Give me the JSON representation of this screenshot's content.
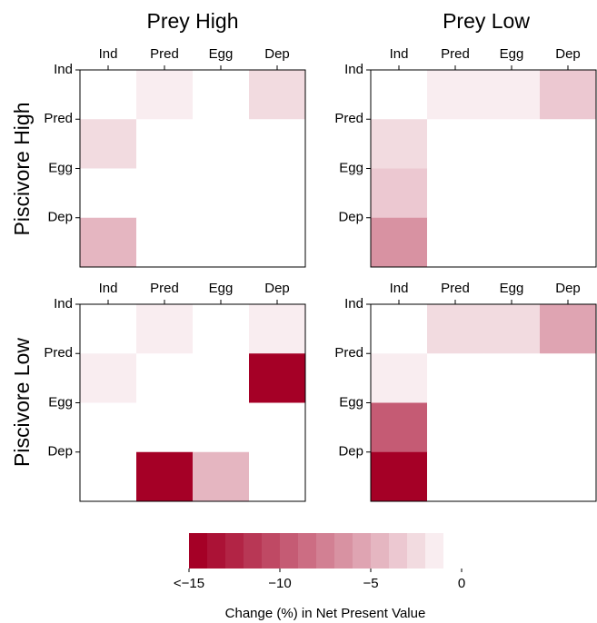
{
  "column_titles": [
    "Prey High",
    "Prey Low"
  ],
  "row_titles": [
    "Piscivore High",
    "Piscivore Low"
  ],
  "colorbar": {
    "label": "Change (%) in Net Present Value",
    "lim": [
      -15,
      0
    ],
    "levels": 15,
    "colors": [
      "#a50026",
      "#ffffff"
    ],
    "ticks": [
      {
        "value": -15,
        "label": "<−15"
      },
      {
        "value": -10,
        "label": "−10"
      },
      {
        "value": -5,
        "label": "−5"
      },
      0
    ]
  },
  "chart_data": [
    {
      "type": "heatmap",
      "x_categories": [
        "Ind",
        "Pred",
        "Egg",
        "Dep"
      ],
      "y_categories": [
        "Ind",
        "Pred",
        "Egg",
        "Dep"
      ],
      "values": [
        [
          0,
          -2,
          -1,
          -2.5
        ],
        [
          -2.5,
          0,
          -0.5,
          -0.2
        ],
        [
          -1,
          -0.5,
          0,
          -0.5
        ],
        [
          -5,
          0,
          -0.5,
          0
        ]
      ]
    },
    {
      "type": "heatmap",
      "x_categories": [
        "Ind",
        "Pred",
        "Egg",
        "Dep"
      ],
      "y_categories": [
        "Ind",
        "Pred",
        "Egg",
        "Dep"
      ],
      "values": [
        [
          0,
          -2,
          -2,
          -4
        ],
        [
          -3,
          0,
          0,
          -0.2
        ],
        [
          -4,
          0,
          0,
          -0.2
        ],
        [
          -7,
          0,
          0,
          0
        ]
      ]
    },
    {
      "type": "heatmap",
      "x_categories": [
        "Ind",
        "Pred",
        "Egg",
        "Dep"
      ],
      "y_categories": [
        "Ind",
        "Pred",
        "Egg",
        "Dep"
      ],
      "values": [
        [
          0,
          -2,
          -1,
          -1.5
        ],
        [
          -2,
          0,
          -1,
          -15
        ],
        [
          -0.5,
          -1,
          0,
          -1
        ],
        [
          -1,
          -15,
          -5,
          0
        ]
      ]
    },
    {
      "type": "heatmap",
      "x_categories": [
        "Ind",
        "Pred",
        "Egg",
        "Dep"
      ],
      "y_categories": [
        "Ind",
        "Pred",
        "Egg",
        "Dep"
      ],
      "values": [
        [
          0,
          -2.5,
          -3,
          -6
        ],
        [
          -2,
          0,
          -0.2,
          -0.2
        ],
        [
          -10,
          -0.2,
          -0.2,
          -0.3
        ],
        [
          -15,
          0,
          0,
          0
        ]
      ]
    }
  ]
}
